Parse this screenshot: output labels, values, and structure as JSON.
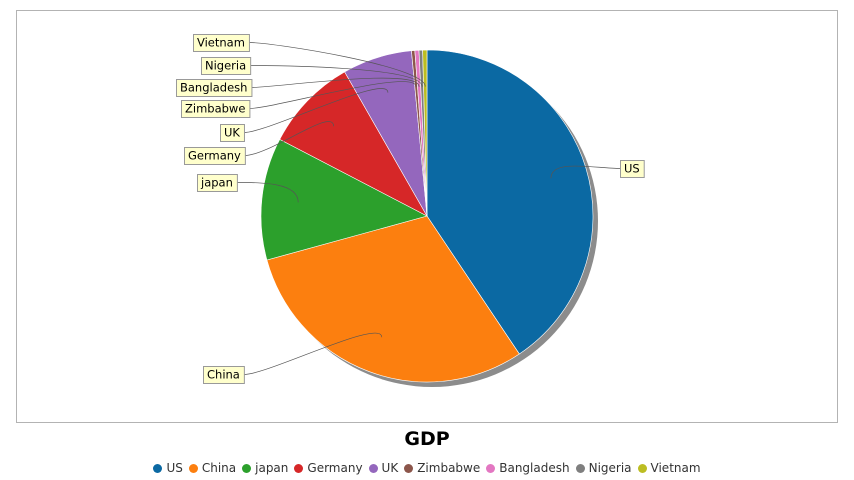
{
  "chart_data": {
    "type": "pie",
    "title": "GDP",
    "categories": [
      "US",
      "China",
      "japan",
      "Germany",
      "UK",
      "Zimbabwe",
      "Bangladesh",
      "Nigeria",
      "Vietnam"
    ],
    "values": [
      17.4,
      12.9,
      5.1,
      3.9,
      2.9,
      0.14,
      0.17,
      0.15,
      0.18
    ],
    "colors": [
      "#0b69a3",
      "#fc7f0f",
      "#2ca02c",
      "#d62728",
      "#9467bd",
      "#8c564b",
      "#e377c2",
      "#7f7f7f",
      "#bcbd22"
    ],
    "legend_position": "bottom",
    "label_background": "#ffffcc"
  }
}
